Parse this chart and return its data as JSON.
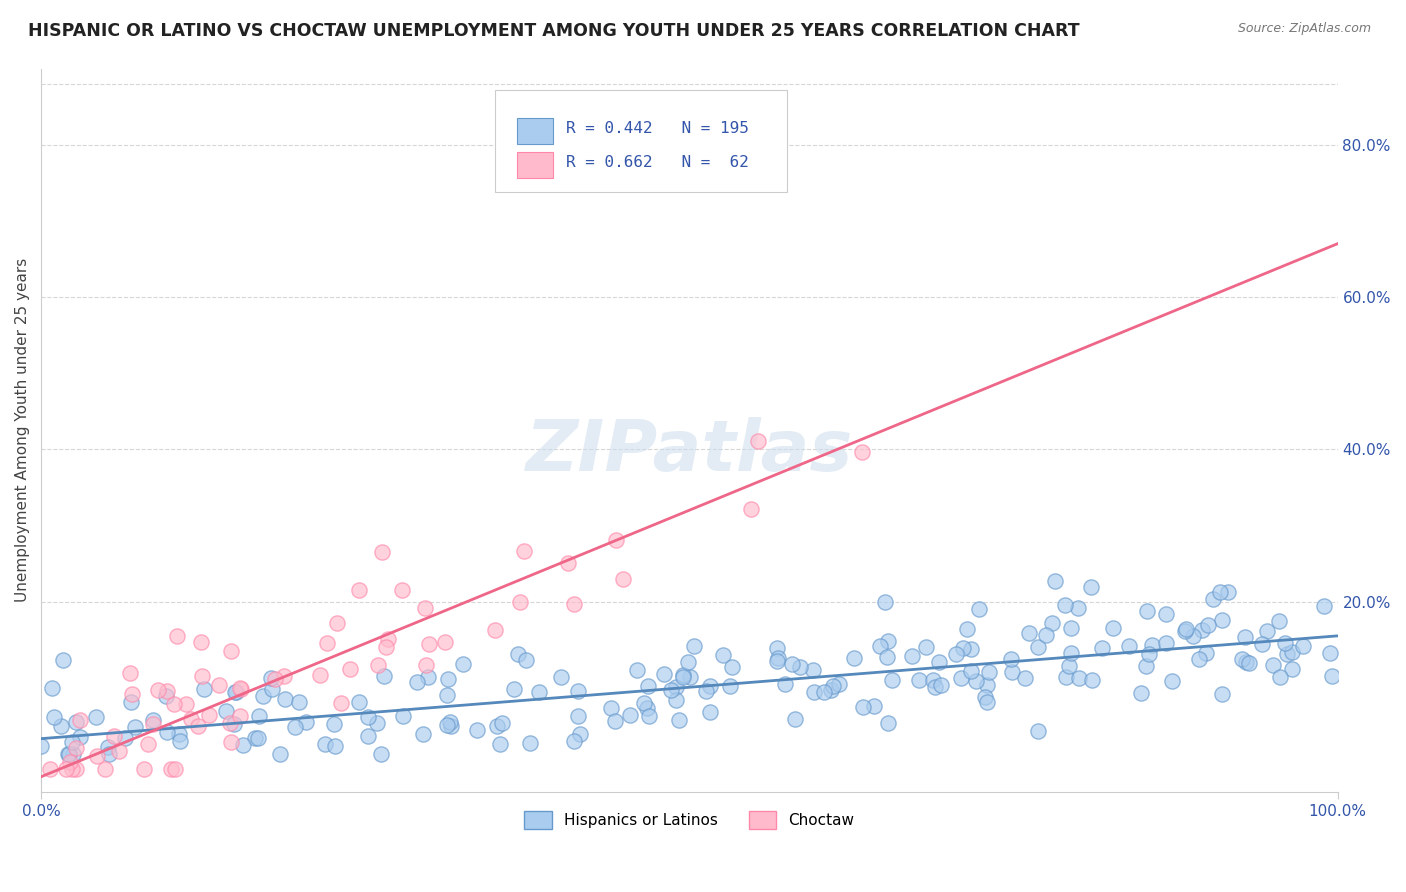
{
  "title": "HISPANIC OR LATINO VS CHOCTAW UNEMPLOYMENT AMONG YOUTH UNDER 25 YEARS CORRELATION CHART",
  "source": "Source: ZipAtlas.com",
  "ylabel": "Unemployment Among Youth under 25 years",
  "blue_R": 0.442,
  "blue_N": 195,
  "pink_R": 0.662,
  "pink_N": 62,
  "blue_edge_color": "#6699CC",
  "pink_edge_color": "#FF88AA",
  "blue_fill_color": "#AACCEE",
  "pink_fill_color": "#FFBBCC",
  "blue_line_color": "#5588BB",
  "pink_line_color": "#EE6688",
  "legend_label_blue": "Hispanics or Latinos",
  "legend_label_pink": "Choctaw",
  "watermark": "ZIPatlas",
  "background_color": "#FFFFFF",
  "xlim": [
    0.0,
    1.0
  ],
  "ylim": [
    -0.05,
    0.9
  ],
  "yticks": [
    0.2,
    0.4,
    0.6,
    0.8
  ],
  "ytick_labels": [
    "20.0%",
    "40.0%",
    "60.0%",
    "80.0%"
  ],
  "xticks": [
    0.0,
    1.0
  ],
  "xtick_labels": [
    "0.0%",
    "100.0%"
  ],
  "blue_line_x0": 0.0,
  "blue_line_x1": 1.0,
  "blue_line_y0": 0.02,
  "blue_line_y1": 0.155,
  "pink_line_x0": 0.0,
  "pink_line_x1": 1.0,
  "pink_line_y0": -0.03,
  "pink_line_y1": 0.67,
  "grid_color": "#BBBBBB",
  "grid_alpha": 0.6,
  "text_color": "#3355AA",
  "title_color": "#222222",
  "source_color": "#777777",
  "spine_color": "#CCCCCC"
}
